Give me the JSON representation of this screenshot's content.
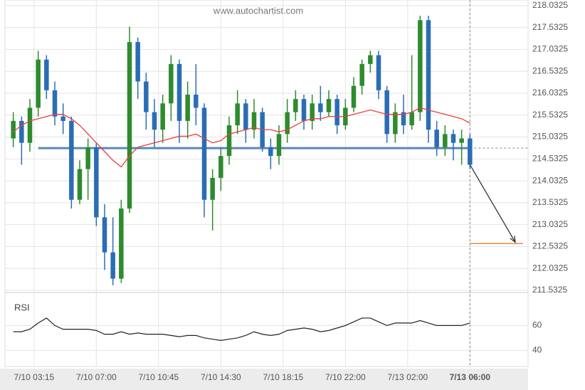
{
  "chart_data": {
    "type": "candlestick",
    "watermark": "www.autochartist.com",
    "xlim": [
      -1,
      62
    ],
    "xticks": [
      {
        "value": 2.5,
        "label": "7/10 03:15"
      },
      {
        "value": 10,
        "label": "7/10 07:00"
      },
      {
        "value": 17.5,
        "label": "7/10 10:45"
      },
      {
        "value": 25,
        "label": "7/10 14:30"
      },
      {
        "value": 32.5,
        "label": "7/10 18:15"
      },
      {
        "value": 40,
        "label": "7/10 22:00"
      },
      {
        "value": 47.5,
        "label": "7/13 02:00"
      },
      {
        "value": 55,
        "label": "7/13 06:00"
      }
    ],
    "ylim": [
      211.5,
      218.16
    ],
    "yticks": [
      211.5325,
      212.0325,
      212.5325,
      213.0325,
      213.5325,
      214.0325,
      214.5325,
      215.0325,
      215.5325,
      216.0325,
      216.5325,
      217.0325,
      217.5325,
      218.0325
    ],
    "grid": true,
    "up_color": "#2e8b2e",
    "down_color": "#2a6db5",
    "open": [
      215.0,
      215.4,
      214.9,
      215.7,
      216.8,
      216.1,
      215.5,
      215.4,
      213.6,
      214.3,
      214.8,
      213.2,
      212.4,
      211.8,
      213.4,
      217.2,
      216.3,
      215.6,
      215.2,
      215.8,
      216.7,
      215.4,
      216.0,
      215.7,
      213.6,
      214.1,
      214.6,
      215.3,
      215.8,
      215.2,
      215.6,
      214.8,
      214.6,
      215.1,
      215.6,
      215.9,
      215.4,
      215.8,
      215.6,
      215.9,
      215.3,
      215.7,
      216.2,
      216.7,
      216.9,
      216.1,
      215.1,
      215.6,
      215.3,
      215.6,
      217.7,
      215.2,
      214.8,
      215.1,
      214.9,
      215.0
    ],
    "high": [
      215.6,
      215.5,
      215.9,
      217.0,
      216.9,
      216.3,
      215.8,
      215.5,
      214.5,
      215.0,
      214.9,
      213.5,
      213.2,
      213.6,
      217.55,
      217.3,
      216.5,
      215.9,
      216.0,
      216.9,
      216.8,
      216.3,
      216.7,
      215.8,
      214.3,
      214.8,
      215.5,
      216.1,
      215.9,
      215.9,
      215.7,
      215.0,
      215.3,
      215.9,
      216.1,
      216.0,
      216.0,
      216.2,
      216.1,
      216.0,
      215.9,
      216.4,
      216.8,
      217.0,
      217.0,
      216.2,
      215.8,
      216.0,
      216.9,
      217.8,
      217.8,
      215.4,
      215.3,
      215.2,
      215.2,
      215.1
    ],
    "low": [
      214.8,
      214.4,
      214.7,
      215.5,
      215.9,
      215.3,
      215.1,
      213.4,
      213.5,
      213.6,
      213.0,
      212.0,
      211.65,
      211.7,
      213.3,
      215.9,
      215.2,
      214.8,
      214.9,
      215.4,
      214.9,
      215.0,
      215.3,
      213.2,
      212.9,
      213.8,
      214.4,
      215.1,
      214.9,
      215.0,
      214.7,
      214.3,
      214.4,
      214.9,
      215.4,
      215.2,
      215.2,
      215.4,
      215.5,
      215.1,
      215.2,
      215.6,
      216.0,
      216.5,
      215.9,
      214.9,
      214.9,
      215.1,
      215.2,
      215.4,
      214.9,
      214.6,
      214.6,
      214.5,
      214.4,
      214.3
    ],
    "close": [
      215.4,
      214.9,
      215.7,
      216.8,
      216.1,
      215.5,
      215.4,
      213.6,
      214.3,
      214.8,
      213.2,
      212.4,
      211.8,
      213.4,
      217.2,
      216.3,
      215.6,
      215.2,
      215.8,
      216.7,
      215.4,
      216.0,
      215.7,
      213.6,
      214.1,
      214.6,
      215.3,
      215.8,
      215.2,
      215.6,
      214.8,
      214.6,
      215.1,
      215.6,
      215.9,
      215.4,
      215.8,
      215.6,
      215.9,
      215.3,
      215.7,
      216.2,
      216.7,
      216.9,
      216.1,
      215.1,
      215.6,
      215.3,
      215.6,
      217.7,
      215.2,
      214.8,
      215.1,
      214.9,
      215.0,
      214.4
    ],
    "ma": {
      "color": "#e8413c",
      "values": [
        215.15,
        215.3,
        215.4,
        215.45,
        215.5,
        215.55,
        215.55,
        215.45,
        215.3,
        215.1,
        214.9,
        214.7,
        214.5,
        214.35,
        214.6,
        214.8,
        214.85,
        214.9,
        214.95,
        215.0,
        215.05,
        215.05,
        215.1,
        215.0,
        214.9,
        214.95,
        215.1,
        215.15,
        215.2,
        215.25,
        215.2,
        215.2,
        215.15,
        215.2,
        215.3,
        215.4,
        215.45,
        215.45,
        215.5,
        215.5,
        215.5,
        215.55,
        215.6,
        215.65,
        215.6,
        215.55,
        215.55,
        215.55,
        215.6,
        215.7,
        215.65,
        215.6,
        215.55,
        215.5,
        215.45,
        215.35
      ]
    },
    "support": {
      "value": 214.78,
      "color": "#5b86b8"
    },
    "target": {
      "value": 212.6,
      "color": "#f28a3a"
    },
    "rsi": {
      "label": "RSI",
      "color": "#222",
      "ylim": [
        27,
        86
      ],
      "yticks": [
        40,
        60
      ],
      "values": [
        55,
        55,
        57,
        62,
        66,
        60,
        57,
        57,
        57,
        57,
        56,
        53,
        53,
        55,
        53,
        54,
        53,
        53,
        53,
        52,
        51,
        52,
        52,
        50,
        49,
        48,
        49,
        50,
        52,
        55,
        53,
        52,
        53,
        56,
        57,
        58,
        57,
        55,
        56,
        58,
        60,
        63,
        66,
        66,
        63,
        60,
        62,
        62,
        62,
        64,
        62,
        60,
        60,
        60,
        60,
        62
      ]
    }
  }
}
